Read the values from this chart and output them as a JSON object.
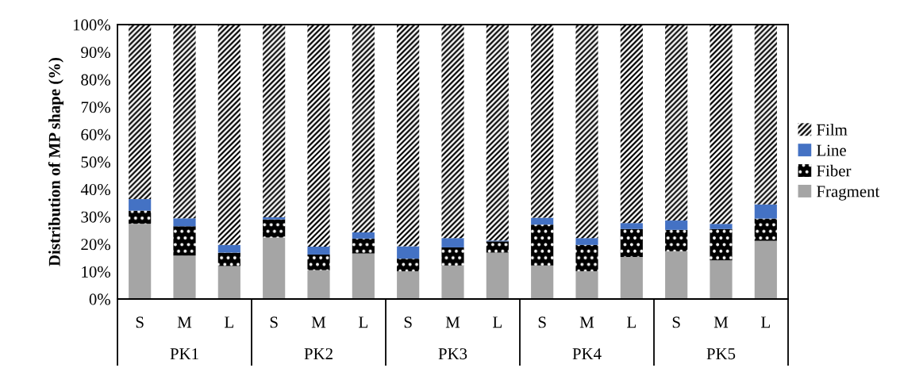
{
  "chart_data": {
    "type": "bar",
    "stacked": true,
    "ylabel": "Distribution of MP shape (%)",
    "categories": [
      "S",
      "M",
      "L",
      "S",
      "M",
      "L",
      "S",
      "M",
      "L",
      "S",
      "M",
      "L",
      "S",
      "M",
      "L"
    ],
    "annotations": [
      "PK1",
      "PK2",
      "PK3",
      "PK4",
      "PK5"
    ],
    "series": [
      {
        "name": "Fragment",
        "color": "#a5a5a5",
        "values": [
          27.4,
          15.8,
          12.0,
          22.4,
          10.5,
          16.6,
          10.1,
          12.2,
          16.9,
          12.2,
          10.1,
          15.3,
          17.4,
          14.1,
          21.2
        ]
      },
      {
        "name": "Fiber",
        "color": "#000000",
        "values": [
          4.8,
          10.7,
          4.9,
          6.6,
          5.7,
          5.4,
          4.6,
          6.6,
          4.1,
          14.9,
          9.6,
          10.2,
          7.8,
          11.4,
          8.1
        ]
      },
      {
        "name": "Line",
        "color": "#4472c4",
        "values": [
          4.2,
          2.9,
          2.8,
          0.8,
          2.9,
          2.3,
          4.5,
          3.4,
          0.3,
          2.5,
          2.5,
          2.2,
          3.4,
          1.9,
          5.2
        ]
      },
      {
        "name": "Film",
        "color": "#000000",
        "values": [
          63.6,
          70.6,
          80.3,
          70.2,
          80.9,
          75.7,
          80.8,
          77.8,
          78.8,
          70.4,
          77.8,
          72.3,
          71.4,
          72.6,
          65.5
        ]
      }
    ],
    "ylim": [
      0,
      100
    ],
    "yticks": [
      {
        "value": 0,
        "label": "0%"
      },
      {
        "value": 10,
        "label": "10%"
      },
      {
        "value": 20,
        "label": "20%"
      },
      {
        "value": 30,
        "label": "30%"
      },
      {
        "value": 40,
        "label": "40%"
      },
      {
        "value": 50,
        "label": "50%"
      },
      {
        "value": 60,
        "label": "60%"
      },
      {
        "value": 70,
        "label": "70%"
      },
      {
        "value": 80,
        "label": "80%"
      },
      {
        "value": 90,
        "label": "90%"
      },
      {
        "value": 100,
        "label": "100%"
      }
    ],
    "legend": "right"
  }
}
